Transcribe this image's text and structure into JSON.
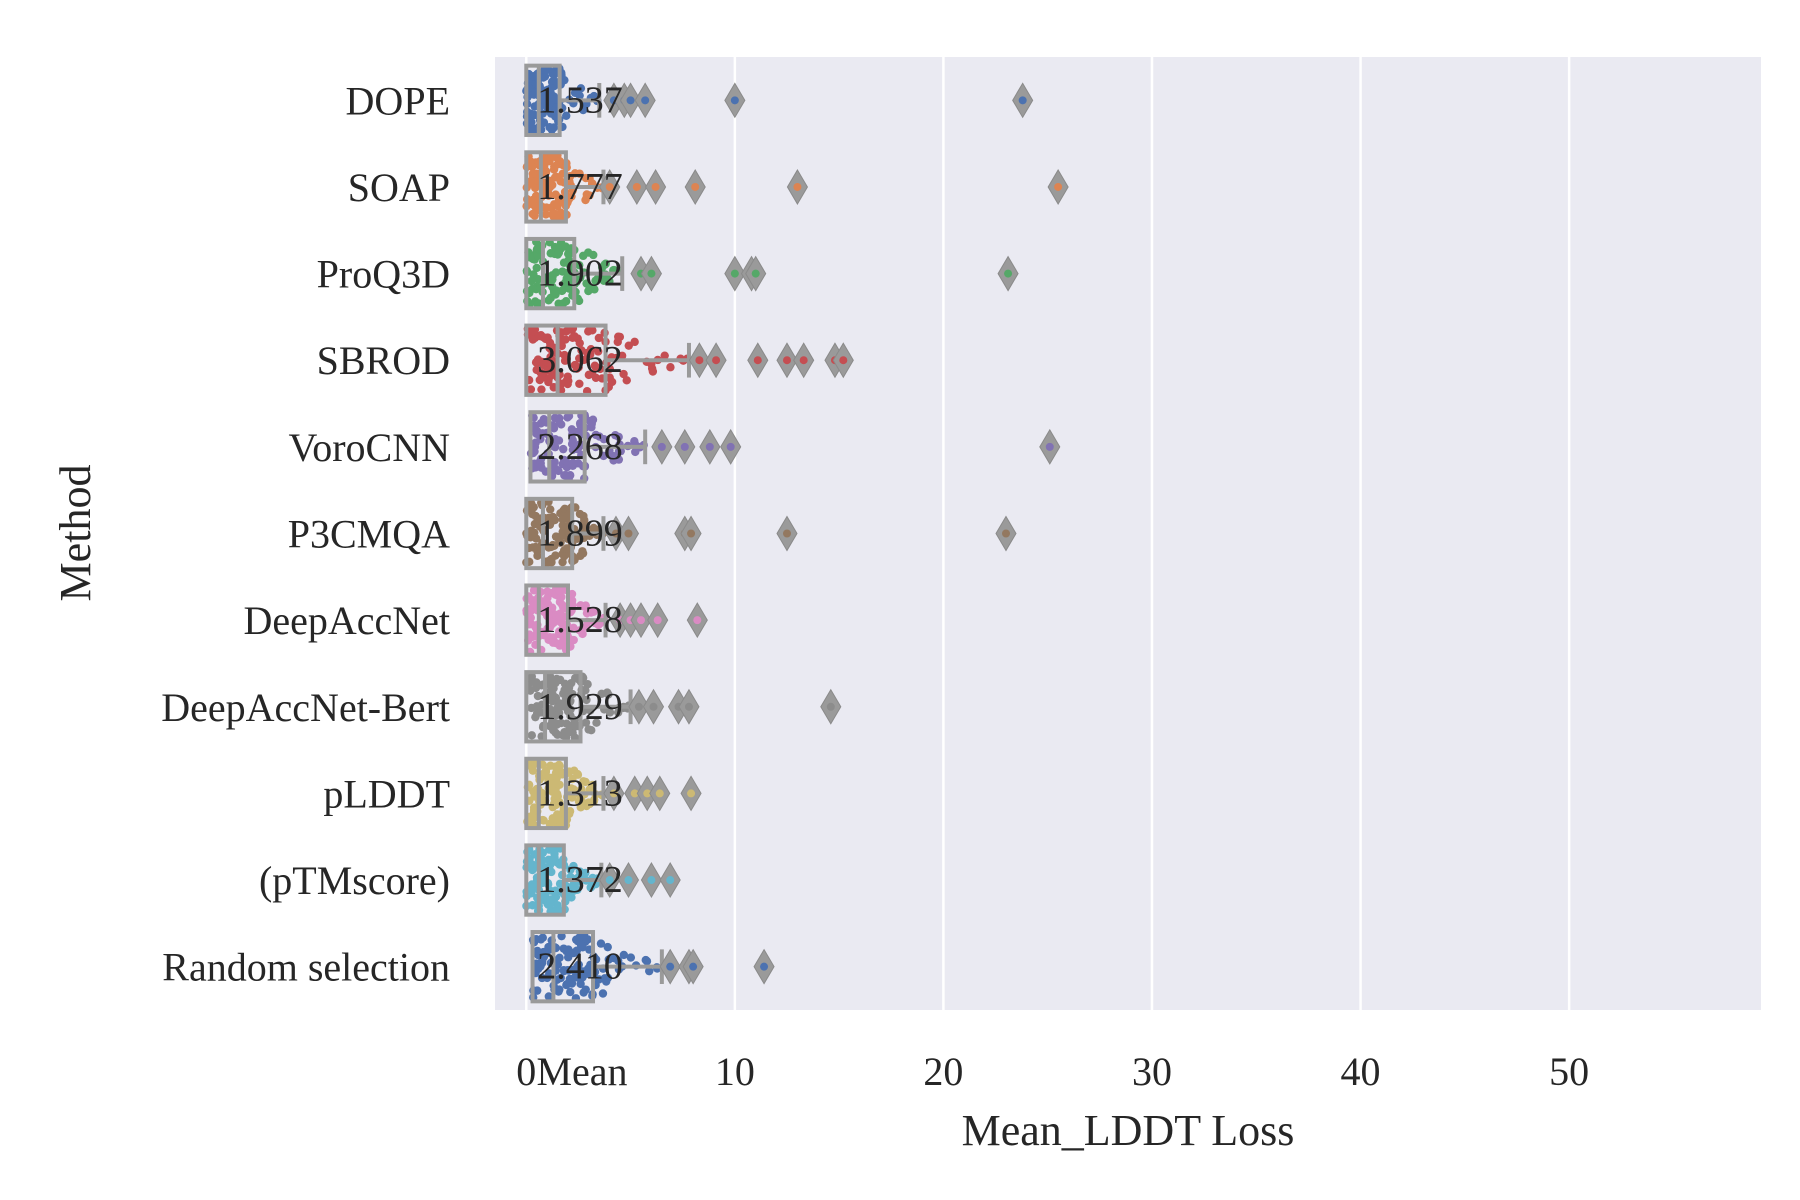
{
  "chart_data": {
    "type": "box",
    "xlabel": "Mean_LDDT Loss",
    "ylabel": "Method",
    "mean_column_label": "Mean",
    "xlim": [
      -1.5,
      59.2
    ],
    "xticks": [
      0,
      10,
      20,
      30,
      40,
      50
    ],
    "grid": true,
    "series": [
      {
        "name": "DOPE",
        "mean": "1.537",
        "color": "#4c72b0",
        "q1": 0,
        "median": 0.6,
        "q3": 1.6,
        "whisker_high": 3.5,
        "outliers": [
          4.2,
          4.7,
          5.0,
          5.7,
          10.0,
          23.8
        ]
      },
      {
        "name": "SOAP",
        "mean": "1.777",
        "color": "#dd8452",
        "q1": 0,
        "median": 0.7,
        "q3": 1.9,
        "whisker_high": 3.7,
        "outliers": [
          4.0,
          5.3,
          6.2,
          8.1,
          13.0,
          25.5
        ]
      },
      {
        "name": "ProQ3D",
        "mean": "1.902",
        "color": "#55a868",
        "q1": 0,
        "median": 0.8,
        "q3": 2.3,
        "whisker_high": 4.6,
        "outliers": [
          5.5,
          6.0,
          10.0,
          10.8,
          11.0,
          23.1
        ]
      },
      {
        "name": "SBROD",
        "mean": "3.062",
        "color": "#c44e52",
        "q1": 0,
        "median": 1.5,
        "q3": 3.8,
        "whisker_high": 7.8,
        "outliers": [
          8.3,
          9.1,
          11.1,
          12.5,
          13.3,
          14.8,
          15.2
        ]
      },
      {
        "name": "VoroCNN",
        "mean": "2.268",
        "color": "#8172b3",
        "q1": 0.2,
        "median": 1.1,
        "q3": 2.8,
        "whisker_high": 5.7,
        "outliers": [
          6.5,
          7.6,
          8.8,
          9.8,
          25.1
        ]
      },
      {
        "name": "P3CMQA",
        "mean": "1.899",
        "color": "#937860",
        "q1": 0,
        "median": 0.8,
        "q3": 2.2,
        "whisker_high": 3.7,
        "outliers": [
          4.3,
          4.9,
          7.6,
          7.9,
          12.5,
          23.0
        ]
      },
      {
        "name": "DeepAccNet",
        "mean": "1.528",
        "color": "#da8bc3",
        "q1": 0,
        "median": 0.6,
        "q3": 2.0,
        "whisker_high": 3.8,
        "outliers": [
          4.5,
          5.0,
          5.5,
          6.3,
          8.2
        ]
      },
      {
        "name": "DeepAccNet-Bert",
        "mean": "1.929",
        "color": "#8c8c8c",
        "q1": 0,
        "median": 0.9,
        "q3": 2.6,
        "whisker_high": 5.0,
        "outliers": [
          5.4,
          6.1,
          7.3,
          7.8,
          14.6
        ]
      },
      {
        "name": "pLDDT",
        "mean": "1.313",
        "color": "#ccb974",
        "q1": 0,
        "median": 0.6,
        "q3": 1.9,
        "whisker_high": 3.7,
        "outliers": [
          4.2,
          5.2,
          5.8,
          6.4,
          7.9
        ]
      },
      {
        "name": "(pTMscore)",
        "mean": "1.372",
        "color": "#64b5cd",
        "q1": 0,
        "median": 0.6,
        "q3": 1.8,
        "whisker_high": 3.6,
        "outliers": [
          4.0,
          4.9,
          6.0,
          6.9
        ]
      },
      {
        "name": "Random selection",
        "mean": "2.410",
        "color": "#4c72b0",
        "q1": 0.3,
        "median": 1.3,
        "q3": 3.2,
        "whisker_high": 6.5,
        "outliers": [
          6.9,
          7.8,
          8.0,
          11.4
        ]
      }
    ]
  }
}
